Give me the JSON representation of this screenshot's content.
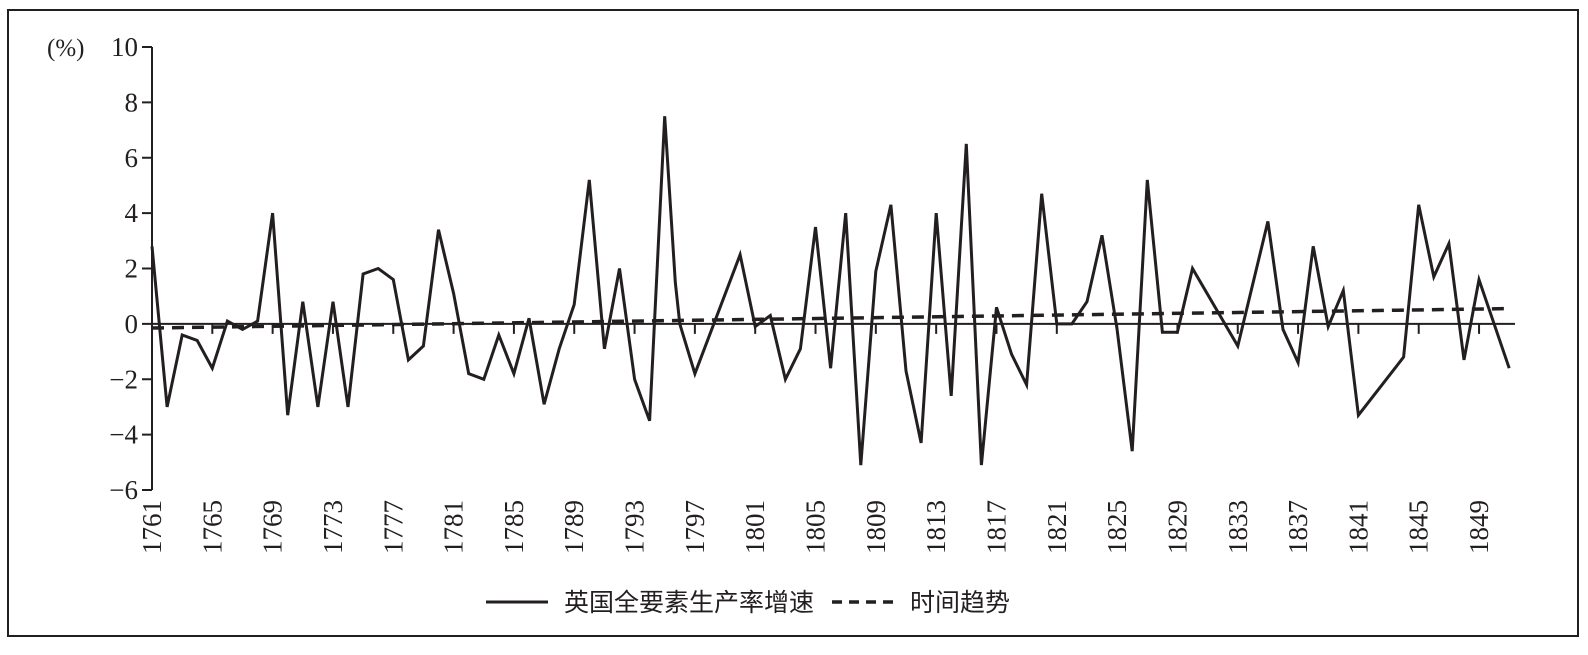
{
  "chart_data": {
    "type": "line",
    "title": "",
    "xlabel": "",
    "ylabel": "(%)",
    "ylim": [
      -6,
      10
    ],
    "yticks": [
      -6,
      -4,
      -2,
      0,
      2,
      4,
      6,
      8,
      10
    ],
    "xlim": [
      1761,
      1851
    ],
    "xticks": [
      1761,
      1765,
      1769,
      1773,
      1777,
      1781,
      1785,
      1789,
      1793,
      1797,
      1801,
      1805,
      1809,
      1813,
      1817,
      1821,
      1825,
      1829,
      1833,
      1837,
      1841,
      1845,
      1849
    ],
    "grid": false,
    "legend_position": "bottom-center",
    "series": [
      {
        "name": "英国全要素生产率增速",
        "style": "solid",
        "color": "#231f20",
        "points": [
          [
            1761,
            2.8
          ],
          [
            1762,
            -3.0
          ],
          [
            1763,
            -0.4
          ],
          [
            1764,
            -0.6
          ],
          [
            1765,
            -1.6
          ],
          [
            1766,
            0.1
          ],
          [
            1767,
            -0.2
          ],
          [
            1768,
            0.1
          ],
          [
            1769,
            4.0
          ],
          [
            1770,
            -3.3
          ],
          [
            1771,
            0.8
          ],
          [
            1772,
            -3.0
          ],
          [
            1773,
            0.8
          ],
          [
            1774,
            -3.0
          ],
          [
            1775,
            1.8
          ],
          [
            1776,
            2.0
          ],
          [
            1777,
            1.6
          ],
          [
            1778,
            -1.3
          ],
          [
            1779,
            -0.8
          ],
          [
            1780,
            3.4
          ],
          [
            1781,
            1.1
          ],
          [
            1782,
            -1.8
          ],
          [
            1783,
            -2.0
          ],
          [
            1784,
            -0.4
          ],
          [
            1785,
            -1.8
          ],
          [
            1786,
            0.2
          ],
          [
            1787,
            -2.9
          ],
          [
            1788,
            -0.9
          ],
          [
            1789,
            0.7
          ],
          [
            1790,
            5.2
          ],
          [
            1791,
            -0.9
          ],
          [
            1792,
            2.0
          ],
          [
            1793,
            -2.0
          ],
          [
            1794,
            -3.5
          ],
          [
            1795,
            7.5
          ],
          [
            1795.7,
            1.5
          ],
          [
            1796,
            0.0
          ],
          [
            1797,
            -1.8
          ],
          [
            1800,
            2.5
          ],
          [
            1801,
            -0.1
          ],
          [
            1802,
            0.3
          ],
          [
            1803,
            -2.0
          ],
          [
            1804,
            -0.9
          ],
          [
            1805,
            3.5
          ],
          [
            1806,
            -1.6
          ],
          [
            1807,
            4.0
          ],
          [
            1808,
            -5.1
          ],
          [
            1809,
            1.9
          ],
          [
            1810,
            4.3
          ],
          [
            1811,
            -1.7
          ],
          [
            1812,
            -4.3
          ],
          [
            1813,
            4.0
          ],
          [
            1814,
            -2.6
          ],
          [
            1815,
            6.5
          ],
          [
            1816,
            -5.1
          ],
          [
            1817,
            0.6
          ],
          [
            1818,
            -1.1
          ],
          [
            1819,
            -2.2
          ],
          [
            1820,
            4.7
          ],
          [
            1821,
            0.0
          ],
          [
            1822,
            0.0
          ],
          [
            1823,
            0.8
          ],
          [
            1824,
            3.2
          ],
          [
            1825,
            -0.2
          ],
          [
            1826,
            -4.6
          ],
          [
            1827,
            5.2
          ],
          [
            1828,
            -0.3
          ],
          [
            1829,
            -0.3
          ],
          [
            1830,
            2.0
          ],
          [
            1833,
            -0.8
          ],
          [
            1835,
            3.7
          ],
          [
            1836,
            -0.2
          ],
          [
            1837,
            -1.4
          ],
          [
            1838,
            2.8
          ],
          [
            1839,
            -0.1
          ],
          [
            1840,
            1.2
          ],
          [
            1841,
            -3.3
          ],
          [
            1844,
            -1.2
          ],
          [
            1845,
            4.3
          ],
          [
            1846,
            1.7
          ],
          [
            1847,
            2.9
          ],
          [
            1848,
            -1.3
          ],
          [
            1849,
            1.6
          ],
          [
            1851,
            -1.6
          ]
        ]
      },
      {
        "name": "时间趋势",
        "style": "dashed",
        "color": "#231f20",
        "points": [
          [
            1761,
            -0.15
          ],
          [
            1851,
            0.55
          ]
        ]
      }
    ]
  }
}
